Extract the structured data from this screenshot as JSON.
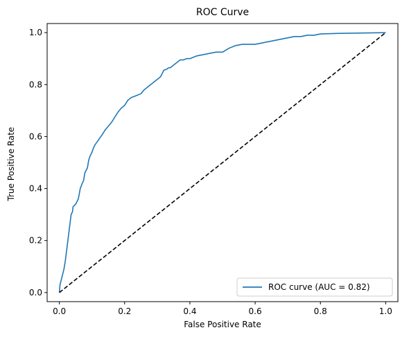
{
  "chart_data": {
    "type": "line",
    "title": "ROC Curve",
    "xlabel": "False Positive Rate",
    "ylabel": "True Positive Rate",
    "xlim": [
      -0.0375,
      1.0375
    ],
    "ylim": [
      -0.035,
      1.035
    ],
    "x_ticks": [
      0.0,
      0.2,
      0.4,
      0.6,
      0.8,
      1.0
    ],
    "x_tick_labels": [
      "0.0",
      "0.2",
      "0.4",
      "0.6",
      "0.8",
      "1.0"
    ],
    "y_ticks": [
      0.0,
      0.2,
      0.4,
      0.6,
      0.8,
      1.0
    ],
    "y_tick_labels": [
      "0.0",
      "0.2",
      "0.4",
      "0.6",
      "0.8",
      "1.0"
    ],
    "grid": false,
    "legend_position": "lower-right",
    "series": [
      {
        "name": "ROC curve (AUC = 0.82)",
        "color": "#1f77b4",
        "style": "solid",
        "x": [
          0.0,
          0.002,
          0.004,
          0.006,
          0.01,
          0.014,
          0.018,
          0.02,
          0.024,
          0.026,
          0.028,
          0.032,
          0.034,
          0.036,
          0.04,
          0.042,
          0.046,
          0.05,
          0.058,
          0.064,
          0.07,
          0.074,
          0.078,
          0.082,
          0.086,
          0.09,
          0.094,
          0.1,
          0.104,
          0.11,
          0.116,
          0.124,
          0.13,
          0.14,
          0.15,
          0.16,
          0.17,
          0.18,
          0.19,
          0.2,
          0.205,
          0.21,
          0.215,
          0.22,
          0.23,
          0.24,
          0.25,
          0.26,
          0.27,
          0.28,
          0.29,
          0.3,
          0.31,
          0.32,
          0.33,
          0.335,
          0.34,
          0.345,
          0.35,
          0.36,
          0.37,
          0.38,
          0.39,
          0.4,
          0.41,
          0.42,
          0.44,
          0.46,
          0.48,
          0.5,
          0.52,
          0.54,
          0.56,
          0.58,
          0.6,
          0.62,
          0.64,
          0.66,
          0.68,
          0.7,
          0.72,
          0.74,
          0.76,
          0.78,
          0.8,
          0.85,
          0.9,
          0.95,
          1.0
        ],
        "y": [
          0.0,
          0.03,
          0.04,
          0.05,
          0.07,
          0.09,
          0.12,
          0.14,
          0.18,
          0.2,
          0.22,
          0.26,
          0.28,
          0.3,
          0.31,
          0.33,
          0.335,
          0.34,
          0.36,
          0.4,
          0.42,
          0.43,
          0.46,
          0.47,
          0.48,
          0.51,
          0.525,
          0.54,
          0.555,
          0.57,
          0.58,
          0.595,
          0.605,
          0.625,
          0.64,
          0.655,
          0.675,
          0.695,
          0.71,
          0.72,
          0.73,
          0.74,
          0.745,
          0.75,
          0.755,
          0.76,
          0.765,
          0.78,
          0.79,
          0.8,
          0.81,
          0.82,
          0.83,
          0.855,
          0.86,
          0.865,
          0.865,
          0.87,
          0.875,
          0.885,
          0.895,
          0.895,
          0.9,
          0.9,
          0.905,
          0.91,
          0.915,
          0.92,
          0.925,
          0.925,
          0.94,
          0.95,
          0.955,
          0.955,
          0.955,
          0.96,
          0.965,
          0.97,
          0.975,
          0.98,
          0.985,
          0.985,
          0.99,
          0.99,
          0.995,
          0.997,
          0.998,
          0.999,
          1.0
        ]
      },
      {
        "name": "",
        "color": "#000000",
        "style": "dashed",
        "x": [
          0.0,
          1.0
        ],
        "y": [
          0.0,
          1.0
        ]
      }
    ]
  }
}
